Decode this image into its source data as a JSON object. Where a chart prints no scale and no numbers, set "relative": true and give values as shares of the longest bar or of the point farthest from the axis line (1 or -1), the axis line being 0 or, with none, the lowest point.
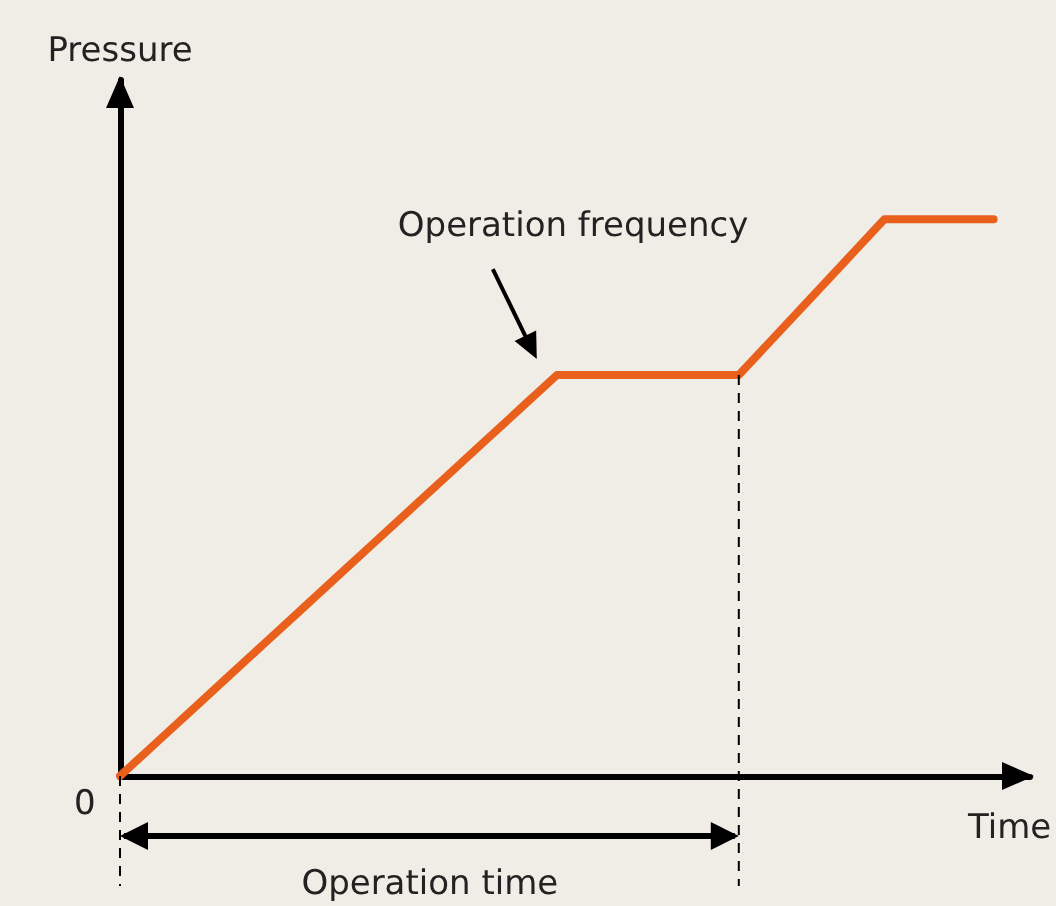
{
  "chart_data": {
    "type": "line",
    "relative": true,
    "ylabel": "Pressure",
    "xlabel": "Time",
    "categories": [
      null,
      null,
      null,
      null,
      null,
      null,
      null,
      null,
      null,
      null,
      null,
      null,
      null,
      null,
      null,
      null,
      null,
      null,
      null,
      null,
      null,
      null,
      null,
      null,
      null,
      null
    ],
    "series": [
      {
        "color": "#e8601c",
        "values": [
          0,
          0.06,
          0.12,
          0.18,
          0.24,
          0.3,
          0.36,
          0.42,
          0.48,
          0.54,
          0.6,
          0.66,
          0.72,
          0.72,
          0.72,
          0.72,
          0.72,
          0.72,
          0.79,
          0.86,
          0.93,
          1,
          1,
          1,
          1,
          null
        ]
      }
    ],
    "marker": "none",
    "line_style": "solid",
    "annotations": [
      "0",
      "Operation frequency",
      "Operation time"
    ]
  }
}
